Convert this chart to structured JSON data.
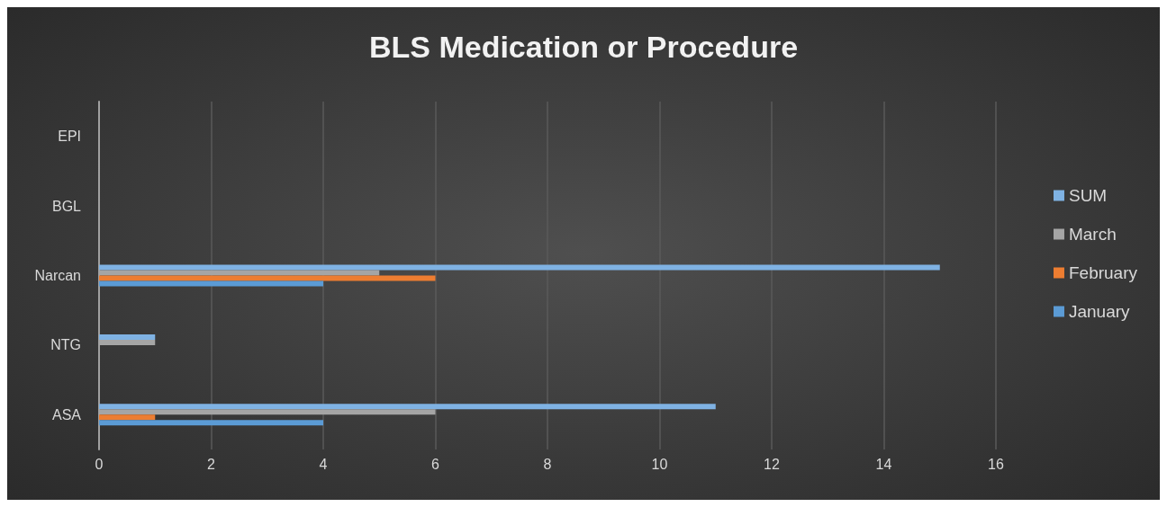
{
  "chart_data": {
    "type": "bar",
    "orientation": "horizontal",
    "title": "BLS Medication or Procedure",
    "categories": [
      "EPI",
      "BGL",
      "Narcan",
      "NTG",
      "ASA"
    ],
    "series": [
      {
        "name": "January",
        "color": "#5b9bd5",
        "values": [
          0,
          0,
          4,
          0,
          4
        ]
      },
      {
        "name": "February",
        "color": "#ed7d31",
        "values": [
          0,
          0,
          6,
          0,
          1
        ]
      },
      {
        "name": "March",
        "color": "#a5a5a5",
        "values": [
          0,
          0,
          5,
          1,
          6
        ]
      },
      {
        "name": "SUM",
        "color": "#7fb2e3",
        "values": [
          0,
          0,
          15,
          1,
          11
        ]
      }
    ],
    "xlim": [
      0,
      16
    ],
    "xticks": [
      0,
      2,
      4,
      6,
      8,
      10,
      12,
      14,
      16
    ],
    "grid": "x",
    "legend": "right"
  }
}
